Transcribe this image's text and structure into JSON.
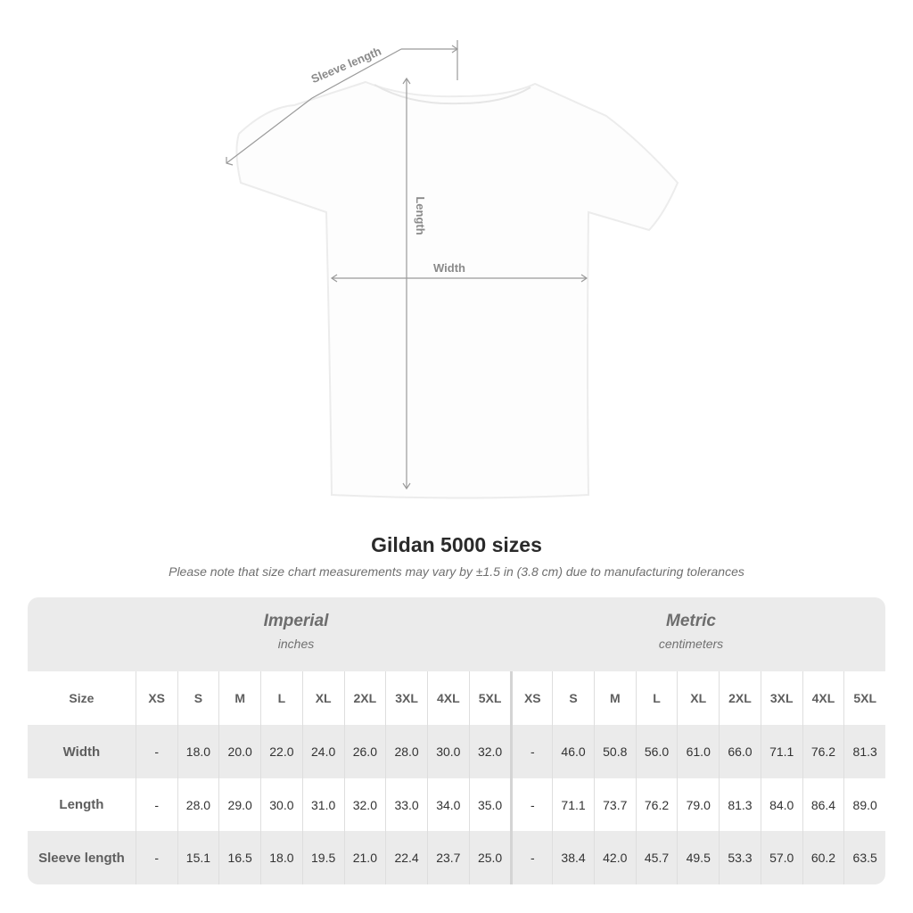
{
  "diagram": {
    "sleeve_label": "Sleeve length",
    "length_label": "Length",
    "width_label": "Width"
  },
  "title": "Gildan 5000 sizes",
  "note": "Please note that size chart measurements may vary by ±1.5 in (3.8 cm) due to manufacturing tolerances",
  "imperial": {
    "heading": "Imperial",
    "unit": "inches"
  },
  "metric": {
    "heading": "Metric",
    "unit": "centimeters"
  },
  "size_header": "Size",
  "sizes": [
    "XS",
    "S",
    "M",
    "L",
    "XL",
    "2XL",
    "3XL",
    "4XL",
    "5XL"
  ],
  "rows": [
    {
      "label": "Width",
      "imperial": [
        "-",
        "18.0",
        "20.0",
        "22.0",
        "24.0",
        "26.0",
        "28.0",
        "30.0",
        "32.0"
      ],
      "metric": [
        "-",
        "46.0",
        "50.8",
        "56.0",
        "61.0",
        "66.0",
        "71.1",
        "76.2",
        "81.3"
      ]
    },
    {
      "label": "Length",
      "imperial": [
        "-",
        "28.0",
        "29.0",
        "30.0",
        "31.0",
        "32.0",
        "33.0",
        "34.0",
        "35.0"
      ],
      "metric": [
        "-",
        "71.1",
        "73.7",
        "76.2",
        "79.0",
        "81.3",
        "84.0",
        "86.4",
        "89.0"
      ]
    },
    {
      "label": "Sleeve length",
      "imperial": [
        "-",
        "15.1",
        "16.5",
        "18.0",
        "19.5",
        "21.0",
        "22.4",
        "23.7",
        "25.0"
      ],
      "metric": [
        "-",
        "38.4",
        "42.0",
        "45.7",
        "49.5",
        "53.3",
        "57.0",
        "60.2",
        "63.5"
      ]
    }
  ],
  "colors": {
    "band": "#ebebeb",
    "measure_line": "#9a9a9a"
  }
}
